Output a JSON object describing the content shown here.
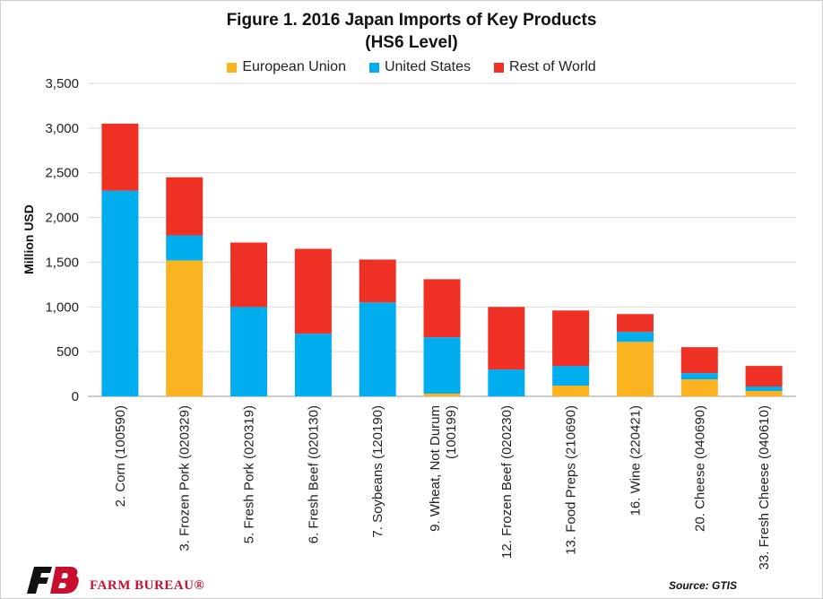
{
  "chart_data": {
    "type": "bar",
    "stacked": true,
    "title": "Figure 1. 2016 Japan Imports of Key Products",
    "subtitle": "(HS6 Level)",
    "ylabel": "Million USD",
    "xlabel": "",
    "ylim": [
      0,
      3500
    ],
    "yticks": [
      "0",
      "500",
      "1,000",
      "1,500",
      "2,000",
      "2,500",
      "3,000",
      "3,500"
    ],
    "grid": true,
    "legend_position": "top",
    "categories": [
      "2. Corn (100590)",
      "3. Frozen Pork (020329)",
      "5. Fresh Pork (020319)",
      "6. Fresh Beef (020130)",
      "7. Soybeans (120190)",
      "9. Wheat, Not Durum (100199)",
      "12. Frozen Beef (020230)",
      "13. Food Preps (210690)",
      "16. Wine (220421)",
      "20. Cheese (040690)",
      "33. Fresh Cheese (040610)"
    ],
    "series": [
      {
        "name": "European Union",
        "color": "#fbb41f",
        "values": [
          0,
          1520,
          0,
          0,
          0,
          30,
          0,
          120,
          610,
          190,
          60
        ]
      },
      {
        "name": "United States",
        "color": "#00adef",
        "values": [
          2300,
          280,
          1000,
          700,
          1050,
          630,
          300,
          220,
          110,
          70,
          50
        ]
      },
      {
        "name": "Rest of World",
        "color": "#ee3124",
        "values": [
          750,
          650,
          720,
          950,
          480,
          650,
          700,
          620,
          200,
          290,
          230
        ]
      }
    ]
  },
  "footer": {
    "source": "Source: GTIS",
    "logo_text": "FARM BUREAU®"
  }
}
